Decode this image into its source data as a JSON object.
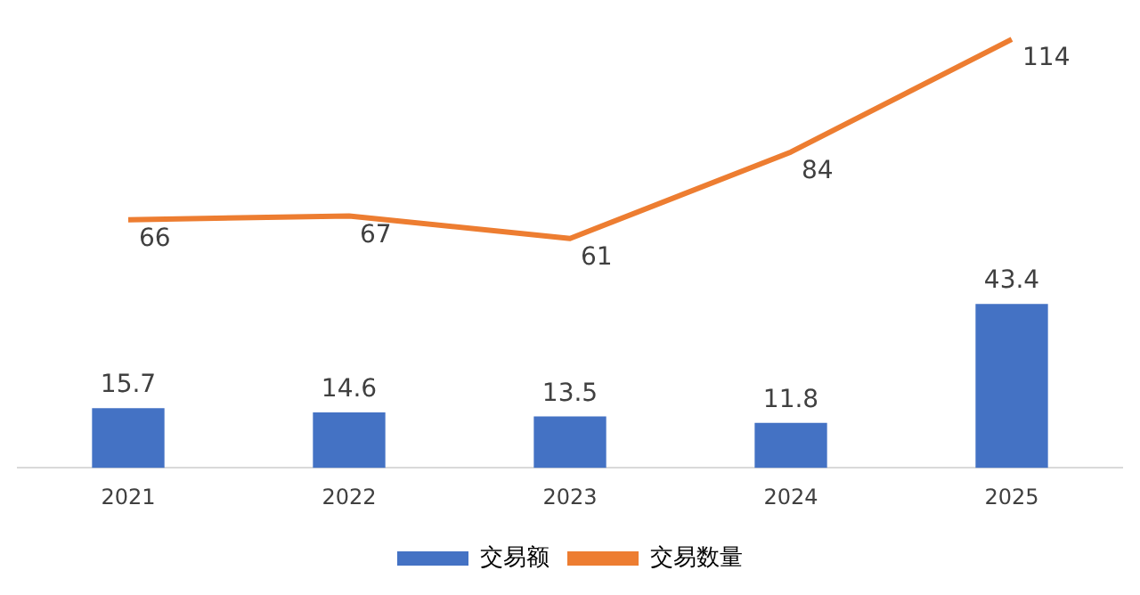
{
  "chart_data": {
    "type": "bar",
    "categories": [
      "2021",
      "2022",
      "2023",
      "2024",
      "2025"
    ],
    "series": [
      {
        "name": "交易额",
        "color": "#4472c4",
        "values": [
          15.7,
          14.6,
          13.5,
          11.8,
          43.4
        ]
      },
      {
        "name": "交易数量",
        "type": "line",
        "color": "#ed7d31",
        "values": [
          66,
          67,
          61,
          84,
          114
        ]
      }
    ],
    "tick_labels": "x",
    "data_labels": true,
    "legend": "bottom",
    "grid": false,
    "marker": "none",
    "line_style": "solid"
  }
}
